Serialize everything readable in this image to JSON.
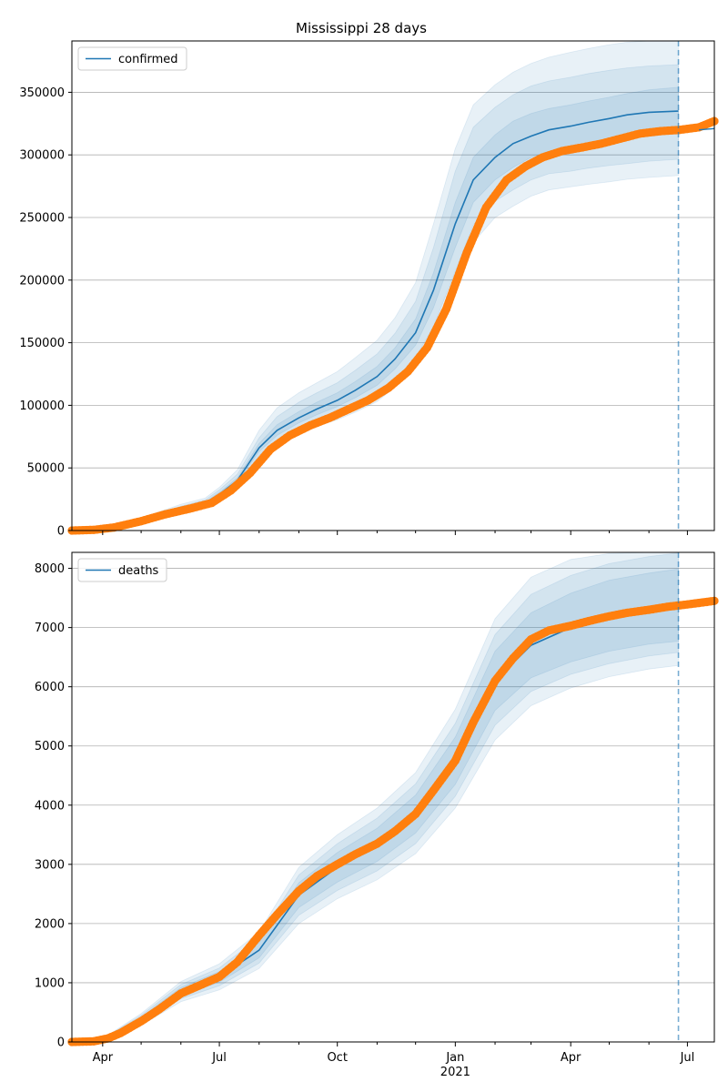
{
  "title": "Mississippi 28 days",
  "chart_data": [
    {
      "type": "line",
      "id": "confirmed",
      "legend": "confirmed",
      "legend_loc": "upper left",
      "grid": "y",
      "xlim": [
        "2020-03-08",
        "2021-07-22"
      ],
      "ylim": [
        0,
        391000
      ],
      "yticks": [
        0,
        50000,
        100000,
        150000,
        200000,
        250000,
        300000,
        350000
      ],
      "forecast_start": "2021-06-24",
      "colors": {
        "line": "#1f77b4",
        "observed": "#ff7f0e",
        "band": "#1f77b4"
      },
      "forecast": {
        "x": [
          "2020-03-08",
          "2020-04-01",
          "2020-05-01",
          "2020-06-01",
          "2020-06-20",
          "2020-07-01",
          "2020-07-15",
          "2020-08-01",
          "2020-08-15",
          "2020-09-01",
          "2020-09-15",
          "2020-10-01",
          "2020-10-15",
          "2020-11-01",
          "2020-11-15",
          "2020-12-01",
          "2020-12-15",
          "2021-01-01",
          "2021-01-15",
          "2021-02-01",
          "2021-02-15",
          "2021-03-01",
          "2021-03-15",
          "2021-04-01",
          "2021-04-15",
          "2021-05-01",
          "2021-05-15",
          "2021-06-01",
          "2021-06-24"
        ],
        "median": [
          0,
          1800,
          8000,
          17000,
          22000,
          29000,
          40000,
          66000,
          80000,
          90000,
          97000,
          104000,
          112000,
          123000,
          137000,
          158000,
          192000,
          245000,
          280000,
          298000,
          309000,
          315000,
          320000,
          323000,
          326000,
          329000,
          332000,
          334000,
          335000
        ],
        "bands": [
          {
            "lower": [
              0,
              1700,
              7500,
              16000,
              21000,
              27500,
              38500,
              63000,
              76000,
              86000,
              92500,
              99000,
              106000,
              116000,
              129000,
              148000,
              178000,
              226000,
              262000,
              280000,
              290000,
              298000,
              303000,
              306000,
              309000,
              312000,
              314000,
              317000,
              319000
            ],
            "upper": [
              0,
              1900,
              8500,
              18000,
              23000,
              30500,
              42000,
              69500,
              84500,
              95000,
              102500,
              110000,
              119000,
              131000,
              146000,
              169000,
              206000,
              262000,
              298000,
              316000,
              327000,
              333000,
              337000,
              340000,
              343000,
              346000,
              349000,
              352000,
              354000
            ]
          },
          {
            "lower": [
              0,
              1550,
              7000,
              15000,
              20000,
              26000,
              36500,
              60000,
              72000,
              81000,
              87000,
              93000,
              99500,
              108500,
              121000,
              138000,
              163000,
              207000,
              244000,
              263000,
              272000,
              280000,
              285000,
              287000,
              289500,
              291500,
              293000,
              295000,
              296500
            ],
            "upper": [
              0,
              2050,
              9200,
              19500,
              24500,
              32500,
              45000,
              74000,
              91000,
              102500,
              110000,
              118000,
              128000,
              141000,
              157500,
              183000,
              226000,
              287000,
              322000,
              338000,
              348000,
              355000,
              359000,
              362000,
              365000,
              367500,
              369500,
              371000,
              372000
            ]
          },
          {
            "lower": [
              0,
              1400,
              6500,
              14000,
              19000,
              24500,
              34500,
              57000,
              68500,
              77000,
              83000,
              88500,
              94500,
              103000,
              114500,
              130000,
              152000,
              193000,
              230000,
              250000,
              259000,
              267000,
              272000,
              274500,
              276500,
              278500,
              280500,
              282000,
              283500
            ],
            "upper": [
              0,
              2250,
              10000,
              21000,
              26000,
              34500,
              48500,
              80000,
              98000,
              110000,
              118000,
              127000,
              138000,
              152000,
              170000,
              198000,
              245000,
              305000,
              340000,
              356000,
              366000,
              373000,
              378000,
              382000,
              385000,
              388000,
              390000,
              391000,
              391000
            ]
          }
        ]
      },
      "observed": {
        "x": [
          "2020-03-08",
          "2020-03-25",
          "2020-04-10",
          "2020-05-01",
          "2020-05-20",
          "2020-06-10",
          "2020-06-25",
          "2020-07-10",
          "2020-07-25",
          "2020-08-10",
          "2020-08-25",
          "2020-09-10",
          "2020-09-25",
          "2020-10-10",
          "2020-10-25",
          "2020-11-10",
          "2020-11-25",
          "2020-12-10",
          "2020-12-25",
          "2021-01-10",
          "2021-01-25",
          "2021-02-10",
          "2021-02-25",
          "2021-03-10",
          "2021-03-25",
          "2021-04-10",
          "2021-04-25",
          "2021-05-10",
          "2021-05-25",
          "2021-06-10",
          "2021-06-25",
          "2021-07-10",
          "2021-07-22"
        ],
        "y": [
          0,
          500,
          2500,
          7500,
          13000,
          18000,
          22000,
          32000,
          46000,
          65000,
          76000,
          84000,
          90000,
          97000,
          104000,
          114000,
          127000,
          146000,
          177000,
          222000,
          258000,
          280000,
          291000,
          298000,
          303000,
          306000,
          309000,
          313000,
          317000,
          319000,
          320000,
          322000,
          327000
        ]
      },
      "trailing_line": {
        "x": [
          "2021-07-10",
          "2021-07-22"
        ],
        "y": [
          320000,
          321000
        ]
      }
    },
    {
      "type": "line",
      "id": "deaths",
      "legend": "deaths",
      "legend_loc": "upper left",
      "grid": "y",
      "xlim": [
        "2020-03-08",
        "2021-07-22"
      ],
      "ylim": [
        0,
        8270
      ],
      "yticks": [
        0,
        1000,
        2000,
        3000,
        4000,
        5000,
        6000,
        7000,
        8000
      ],
      "xticks": [
        "Apr",
        "Jul",
        "Oct",
        "Jan",
        "Apr",
        "Jul"
      ],
      "xtick_dates": [
        "2020-04-01",
        "2020-07-01",
        "2020-10-01",
        "2021-01-01",
        "2021-04-01",
        "2021-07-01"
      ],
      "xlabel_year": "2021",
      "forecast_start": "2021-06-24",
      "colors": {
        "line": "#1f77b4",
        "observed": "#ff7f0e",
        "band": "#1f77b4"
      },
      "forecast": {
        "x": [
          "2020-03-08",
          "2020-04-01",
          "2020-05-01",
          "2020-06-01",
          "2020-07-01",
          "2020-08-01",
          "2020-09-01",
          "2020-10-01",
          "2020-11-01",
          "2020-12-01",
          "2021-01-01",
          "2021-02-01",
          "2021-03-01",
          "2021-04-01",
          "2021-05-01",
          "2021-06-01",
          "2021-06-24"
        ],
        "median": [
          0,
          40,
          380,
          850,
          1100,
          1550,
          2480,
          2950,
          3330,
          3850,
          4750,
          6100,
          6700,
          7000,
          7200,
          7320,
          7380
        ],
        "bands": [
          {
            "lower": [
              0,
              35,
              340,
              780,
              1010,
              1420,
              2270,
              2700,
              3050,
              3530,
              4350,
              5600,
              6150,
              6420,
              6600,
              6720,
              6770
            ],
            "upper": [
              0,
              45,
              420,
              920,
              1190,
              1680,
              2690,
              3200,
              3610,
              4170,
              5150,
              6600,
              7250,
              7580,
              7800,
              7920,
              7990
            ]
          },
          {
            "lower": [
              0,
              30,
              310,
              730,
              950,
              1330,
              2140,
              2560,
              2890,
              3350,
              4150,
              5350,
              5920,
              6210,
              6390,
              6520,
              6580
            ],
            "upper": [
              0,
              50,
              450,
              970,
              1250,
              1770,
              2820,
              3350,
              3780,
              4360,
              5380,
              6880,
              7560,
              7880,
              8080,
              8200,
              8260
            ]
          },
          {
            "lower": [
              0,
              25,
              280,
              680,
              880,
              1240,
              2000,
              2420,
              2740,
              3180,
              3950,
              5100,
              5680,
              5980,
              6170,
              6300,
              6360
            ],
            "upper": [
              0,
              55,
              480,
              1020,
              1320,
              1860,
              2950,
              3500,
              3950,
              4550,
              5620,
              7150,
              7850,
              8150,
              8250,
              8270,
              8270
            ]
          }
        ]
      },
      "observed": {
        "x": [
          "2020-03-08",
          "2020-03-25",
          "2020-04-05",
          "2020-04-15",
          "2020-05-01",
          "2020-05-15",
          "2020-06-01",
          "2020-06-15",
          "2020-07-01",
          "2020-07-15",
          "2020-08-01",
          "2020-08-15",
          "2020-09-01",
          "2020-09-15",
          "2020-10-01",
          "2020-10-15",
          "2020-11-01",
          "2020-11-15",
          "2020-12-01",
          "2020-12-15",
          "2021-01-01",
          "2021-01-15",
          "2021-02-01",
          "2021-02-15",
          "2021-03-01",
          "2021-03-15",
          "2021-04-01",
          "2021-04-15",
          "2021-05-01",
          "2021-05-15",
          "2021-06-01",
          "2021-06-15",
          "2021-07-01",
          "2021-07-22"
        ],
        "y": [
          0,
          10,
          60,
          150,
          350,
          550,
          820,
          950,
          1100,
          1350,
          1800,
          2150,
          2550,
          2800,
          3000,
          3170,
          3350,
          3560,
          3850,
          4250,
          4750,
          5400,
          6100,
          6480,
          6800,
          6950,
          7030,
          7110,
          7190,
          7250,
          7300,
          7350,
          7390,
          7450
        ]
      }
    }
  ]
}
